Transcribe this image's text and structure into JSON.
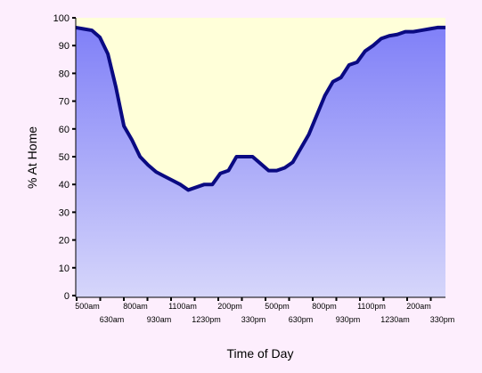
{
  "chart_data": {
    "type": "area",
    "title": "",
    "xlabel": "Time of Day",
    "ylabel": "% At Home",
    "ylim": [
      0,
      100
    ],
    "yticks": [
      0,
      10,
      20,
      30,
      40,
      50,
      60,
      70,
      80,
      90,
      100
    ],
    "xtick_labels": [
      "500am",
      "630am",
      "800am",
      "930am",
      "1100am",
      "1230pm",
      "200pm",
      "330pm",
      "500pm",
      "630pm",
      "800pm",
      "930pm",
      "1100pm",
      "1230am",
      "200am",
      "330pm"
    ],
    "grid": false,
    "legend": "none",
    "colors": {
      "plot_background": "#ffffd9",
      "area_top": "#8080f8",
      "area_bottom": "#d6d6fa",
      "line": "#0a0a82",
      "page_background": "#fdeefd"
    },
    "series": [
      {
        "values": [
          96.5,
          96,
          95.5,
          93,
          87,
          75,
          61,
          56,
          50,
          47,
          44.5,
          43,
          41.5,
          40,
          38,
          39,
          40,
          40,
          44,
          45,
          50,
          50,
          50,
          47.5,
          45,
          45,
          46,
          48,
          53,
          58,
          65,
          72,
          77,
          78.5,
          83,
          84,
          88,
          90,
          92.5,
          93.5,
          94,
          95,
          95,
          95.5,
          96,
          96.5,
          96.5
        ]
      }
    ]
  }
}
